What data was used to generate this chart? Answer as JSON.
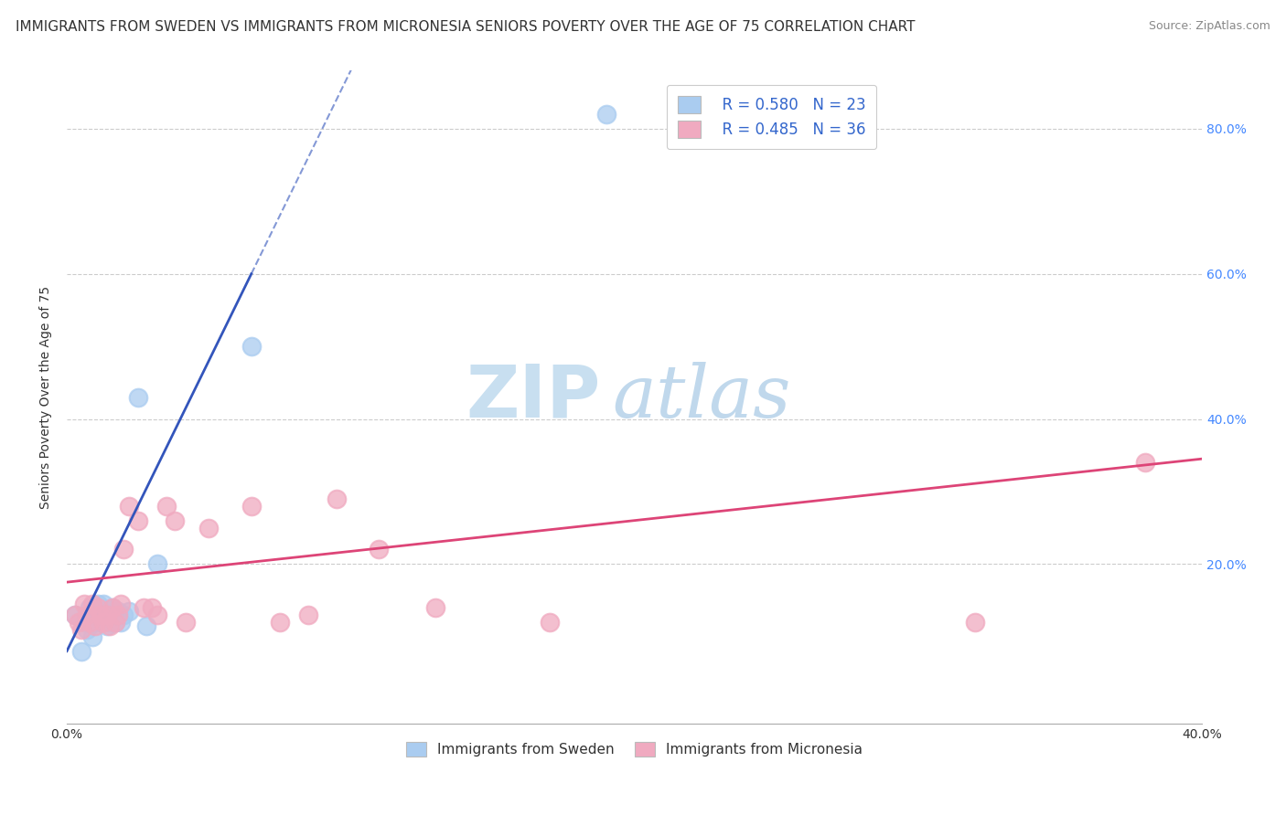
{
  "title": "IMMIGRANTS FROM SWEDEN VS IMMIGRANTS FROM MICRONESIA SENIORS POVERTY OVER THE AGE OF 75 CORRELATION CHART",
  "source": "Source: ZipAtlas.com",
  "ylabel": "Seniors Poverty Over the Age of 75",
  "xlim": [
    0.0,
    0.4
  ],
  "ylim": [
    -0.02,
    0.88
  ],
  "legend_sweden_R": "R = 0.580",
  "legend_sweden_N": "N = 23",
  "legend_micronesia_R": "R = 0.485",
  "legend_micronesia_N": "N = 36",
  "sweden_color": "#aaccf0",
  "micronesia_color": "#f0aac0",
  "sweden_line_color": "#3355bb",
  "micronesia_line_color": "#dd4477",
  "background_color": "#ffffff",
  "watermark_zip_color": "#c8dff0",
  "watermark_atlas_color": "#c0d8ec",
  "sweden_scatter_x": [
    0.003,
    0.005,
    0.006,
    0.007,
    0.008,
    0.009,
    0.01,
    0.011,
    0.012,
    0.013,
    0.014,
    0.015,
    0.016,
    0.017,
    0.018,
    0.019,
    0.02,
    0.022,
    0.025,
    0.028,
    0.032,
    0.065,
    0.19
  ],
  "sweden_scatter_y": [
    0.13,
    0.08,
    0.12,
    0.11,
    0.14,
    0.1,
    0.12,
    0.145,
    0.13,
    0.145,
    0.115,
    0.12,
    0.14,
    0.12,
    0.135,
    0.12,
    0.13,
    0.135,
    0.43,
    0.115,
    0.2,
    0.5,
    0.82
  ],
  "micronesia_scatter_x": [
    0.003,
    0.004,
    0.005,
    0.006,
    0.007,
    0.008,
    0.009,
    0.01,
    0.011,
    0.012,
    0.013,
    0.014,
    0.015,
    0.016,
    0.017,
    0.018,
    0.019,
    0.02,
    0.022,
    0.025,
    0.027,
    0.03,
    0.032,
    0.035,
    0.038,
    0.042,
    0.05,
    0.065,
    0.075,
    0.085,
    0.095,
    0.11,
    0.13,
    0.17,
    0.32,
    0.38
  ],
  "micronesia_scatter_y": [
    0.13,
    0.12,
    0.11,
    0.145,
    0.13,
    0.12,
    0.145,
    0.115,
    0.14,
    0.13,
    0.12,
    0.13,
    0.115,
    0.14,
    0.12,
    0.13,
    0.145,
    0.22,
    0.28,
    0.26,
    0.14,
    0.14,
    0.13,
    0.28,
    0.26,
    0.12,
    0.25,
    0.28,
    0.12,
    0.13,
    0.29,
    0.22,
    0.14,
    0.12,
    0.12,
    0.34
  ],
  "sweden_line_x0": 0.0,
  "sweden_line_y0": 0.08,
  "sweden_line_x1": 0.065,
  "sweden_line_y1": 0.6,
  "micronesia_line_x0": 0.0,
  "micronesia_line_y0": 0.175,
  "micronesia_line_x1": 0.4,
  "micronesia_line_y1": 0.345,
  "title_fontsize": 11,
  "axis_label_fontsize": 10,
  "tick_fontsize": 10,
  "legend_fontsize": 12
}
